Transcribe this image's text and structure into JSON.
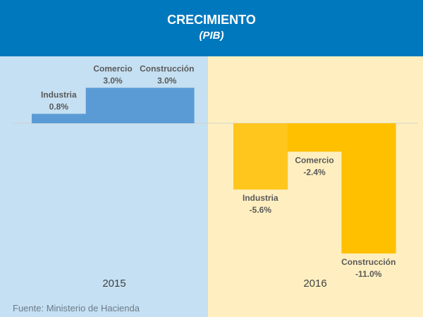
{
  "chart_data": {
    "type": "bar",
    "title": "CRECIMIENTO",
    "subtitle": "(PIB)",
    "unit": "%",
    "groups": [
      {
        "year": "2015",
        "color": "#5B9BD5",
        "background": "#C5E0F2",
        "categories": [
          "Industria",
          "Comercio",
          "Construcción"
        ],
        "values": [
          0.8,
          3.0,
          3.0
        ],
        "labels": [
          "0.8%",
          "3.0%",
          "3.0%"
        ]
      },
      {
        "year": "2016",
        "color": "#FFC000",
        "background": "#FFEFC0",
        "categories": [
          "Industria",
          "Comercio",
          "Construcción"
        ],
        "values": [
          -5.6,
          -2.4,
          -11.0
        ],
        "labels": [
          "-5.6%",
          "-2.4%",
          "-11.0%"
        ]
      }
    ],
    "grid": false,
    "legend": "none"
  },
  "source": "Fuente: Ministerio de Hacienda"
}
